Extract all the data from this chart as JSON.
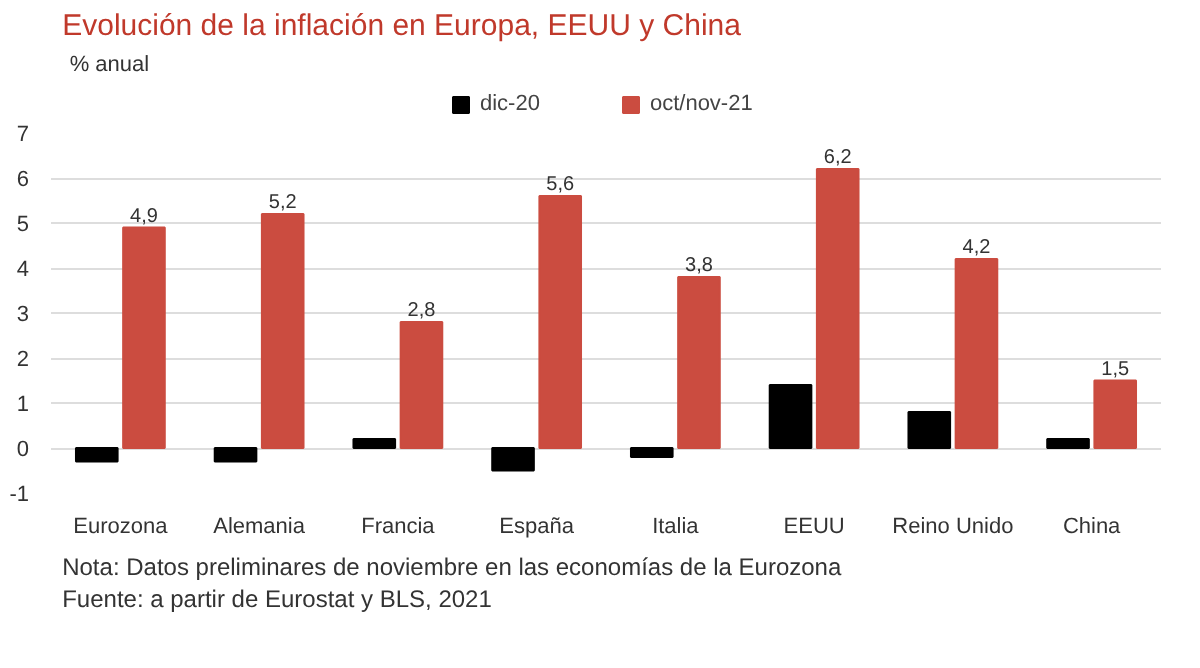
{
  "chart_data": {
    "type": "bar",
    "title": "Evolución de la inflación en Europa, EEUU y China",
    "ylabel": "% anual",
    "categories": [
      "Eurozona",
      "Alemania",
      "Francia",
      "España",
      "Italia",
      "EEUU",
      "Reino Unido",
      "China"
    ],
    "series": [
      {
        "name": "dic-20",
        "color": "#000000",
        "values": [
          -0.3,
          -0.3,
          0.2,
          -0.5,
          -0.2,
          1.4,
          0.8,
          0.2
        ]
      },
      {
        "name": "oct/nov-21",
        "color": "#cb4c40",
        "values": [
          4.9,
          5.2,
          2.8,
          5.6,
          3.8,
          6.2,
          4.2,
          1.5
        ],
        "value_labels": [
          "4,9",
          "5,2",
          "2,8",
          "5,6",
          "3,8",
          "6,2",
          "4,2",
          "1,5"
        ]
      }
    ],
    "ylim": [
      -1,
      7
    ],
    "yticks": [
      {
        "value": -1,
        "label": "-1"
      },
      0,
      1,
      2,
      3,
      4,
      5,
      6,
      7
    ],
    "grid": "y",
    "legend": "top",
    "annotations": [
      "Nota: Datos preliminares de noviembre en las economías de la Eurozona",
      "Fuente: a partir de Eurostat y BLS, 2021"
    ]
  }
}
